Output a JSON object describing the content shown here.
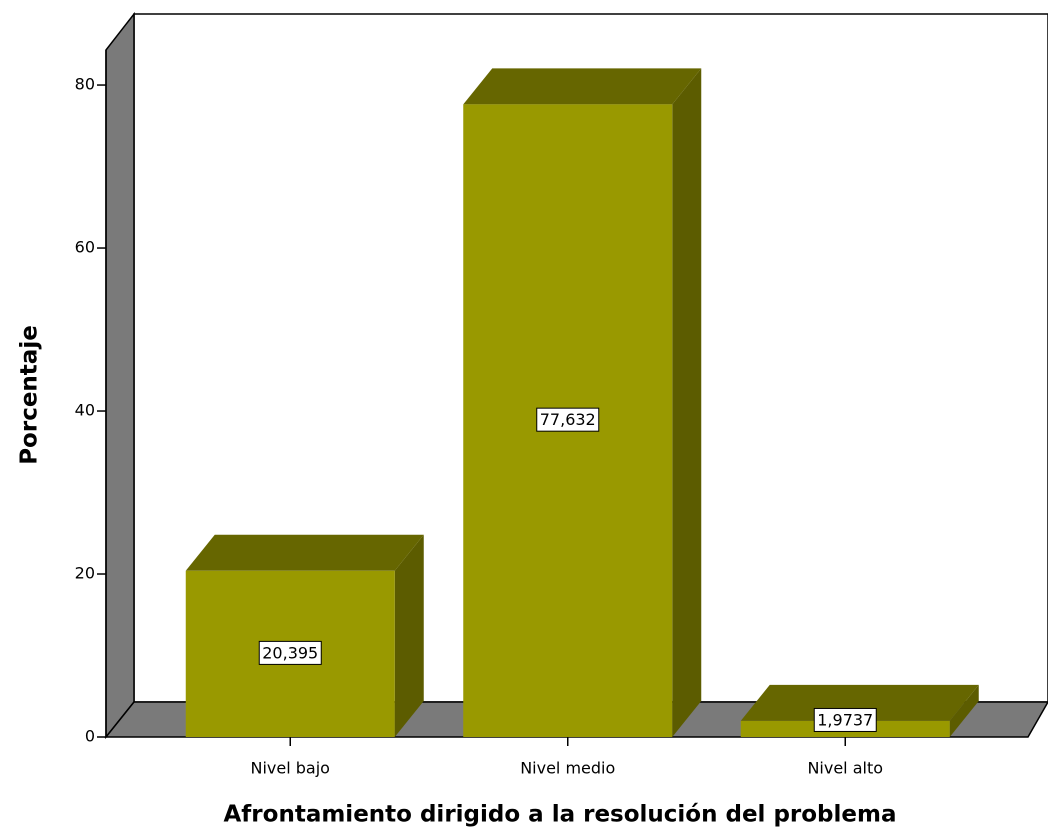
{
  "chart_data": {
    "type": "bar3d",
    "categories": [
      "Nivel bajo",
      "Nivel medio",
      "Nivel alto"
    ],
    "values": [
      20.395,
      77.632,
      1.9737
    ],
    "value_labels": [
      "20,395",
      "77,632",
      "1,9737"
    ],
    "x_label": "Afrontamiento dirigido a la resolución del problema",
    "y_label": "Porcentaje",
    "ylim": [
      0,
      84.3
    ],
    "yticks": [
      0,
      20,
      40,
      60,
      80
    ],
    "color": "#999900"
  }
}
